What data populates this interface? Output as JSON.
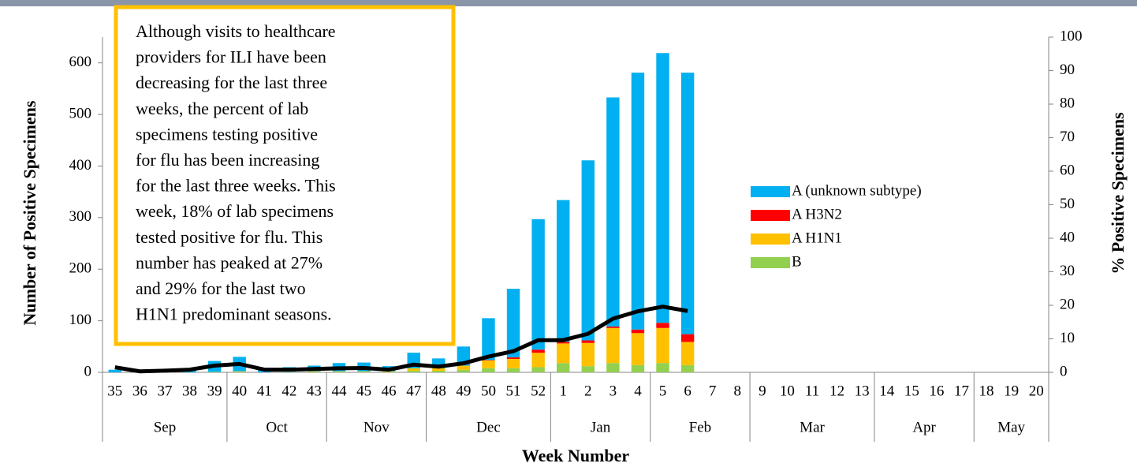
{
  "chart_data": {
    "type": "bar",
    "y_axis_title": "Number of Positive Specimens",
    "y2_axis_title": "% Positive Specimens",
    "x_axis_title": "Week Number",
    "annotation": [
      "Although visits to healthcare",
      "providers for ILI have been",
      "decreasing for the last three",
      "weeks, the percent of lab",
      "specimens testing positive",
      "for flu has been increasing",
      "for the last three weeks. This",
      "week, 18% of lab specimens",
      "tested positive for flu. This",
      "number has peaked at 27%",
      "and 29% for the last two",
      "H1N1 predominant seasons."
    ],
    "categories": [
      "35",
      "36",
      "37",
      "38",
      "39",
      "40",
      "41",
      "42",
      "43",
      "44",
      "45",
      "46",
      "47",
      "48",
      "49",
      "50",
      "51",
      "52",
      "1",
      "2",
      "3",
      "4",
      "5",
      "6",
      "7",
      "8",
      "9",
      "10",
      "11",
      "12",
      "13",
      "14",
      "15",
      "16",
      "17",
      "18",
      "19",
      "20"
    ],
    "x_groups": [
      {
        "label": "Sep",
        "count": 5
      },
      {
        "label": "Oct",
        "count": 4
      },
      {
        "label": "Nov",
        "count": 4
      },
      {
        "label": "Dec",
        "count": 5
      },
      {
        "label": "Jan",
        "count": 4
      },
      {
        "label": "Feb",
        "count": 4
      },
      {
        "label": "Mar",
        "count": 5
      },
      {
        "label": "Apr",
        "count": 4
      },
      {
        "label": "May",
        "count": 3
      }
    ],
    "series": [
      {
        "name": "B",
        "color": "#92d050",
        "values": [
          0,
          0,
          0,
          0,
          1,
          1,
          0,
          1,
          1,
          1,
          1,
          1,
          3,
          3,
          5,
          8,
          8,
          10,
          18,
          12,
          18,
          14,
          18,
          14,
          null,
          null,
          null,
          null,
          null,
          null,
          null,
          null,
          null,
          null,
          null,
          null,
          null,
          null
        ]
      },
      {
        "name": "A H1N1",
        "color": "#ffc000",
        "values": [
          0,
          0,
          0,
          0,
          0,
          1,
          0,
          0,
          1,
          1,
          1,
          1,
          5,
          5,
          8,
          15,
          18,
          28,
          38,
          45,
          68,
          62,
          68,
          45,
          null,
          null,
          null,
          null,
          null,
          null,
          null,
          null,
          null,
          null,
          null,
          null,
          null,
          null
        ]
      },
      {
        "name": "A H3N2",
        "color": "#ff0000",
        "values": [
          0,
          0,
          0,
          0,
          0,
          0,
          0,
          0,
          0,
          0,
          0,
          0,
          0,
          0,
          0,
          1,
          3,
          6,
          3,
          5,
          3,
          7,
          10,
          15,
          null,
          null,
          null,
          null,
          null,
          null,
          null,
          null,
          null,
          null,
          null,
          null,
          null,
          null
        ]
      },
      {
        "name": "A (unknown subtype)",
        "color": "#00b0f0",
        "values": [
          5,
          2,
          3,
          4,
          21,
          28,
          8,
          9,
          11,
          16,
          17,
          10,
          30,
          19,
          37,
          81,
          133,
          253,
          275,
          349,
          444,
          498,
          523,
          507,
          null,
          null,
          null,
          null,
          null,
          null,
          null,
          null,
          null,
          null,
          null,
          null,
          null,
          null
        ]
      },
      {
        "type": "line",
        "axis": "y2",
        "color": "#000000",
        "values": [
          1.5,
          0.3,
          0.5,
          0.8,
          2,
          2.5,
          0.8,
          0.8,
          1,
          1.2,
          1.3,
          0.8,
          2.3,
          1.7,
          2.7,
          4.7,
          6.3,
          9.6,
          9.6,
          11.5,
          16,
          18.2,
          19.6,
          18.3,
          null,
          null,
          null,
          null,
          null,
          null,
          null,
          null,
          null,
          null,
          null,
          null,
          null,
          null
        ]
      }
    ],
    "ylim": [
      0,
      650
    ],
    "yticks": [
      0,
      100,
      200,
      300,
      400,
      500,
      600
    ],
    "y2lim": [
      0,
      100
    ],
    "y2ticks": [
      0,
      10,
      20,
      30,
      40,
      50,
      60,
      70,
      80,
      90,
      100
    ],
    "legend": "right"
  }
}
